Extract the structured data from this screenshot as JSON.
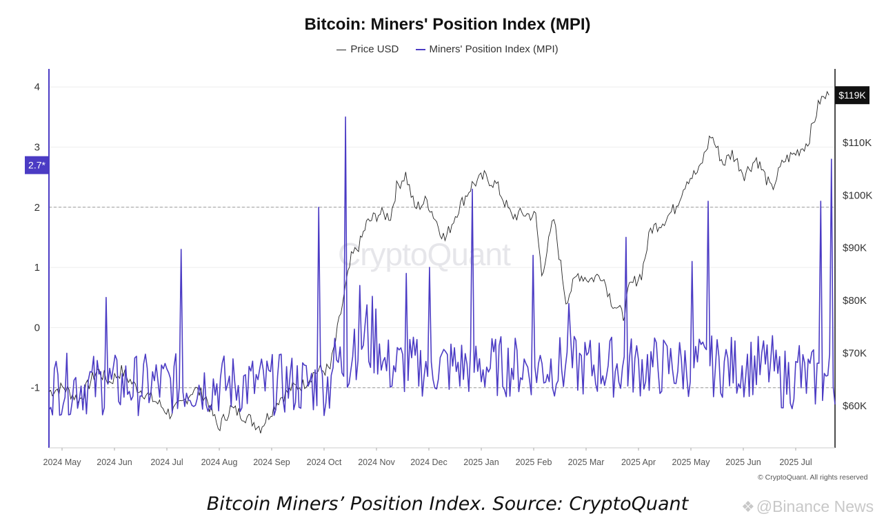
{
  "chart_data": {
    "type": "line",
    "title": "Bitcoin: Miners' Position Index (MPI)",
    "legend_position": "top-center",
    "grid": true,
    "series": [
      {
        "name": "Price USD",
        "color": "#222222",
        "axis": "right",
        "keypoints": [
          [
            0,
            62.7
          ],
          [
            0.5,
            63.5
          ],
          [
            1,
            61.0
          ],
          [
            1.6,
            66.8
          ],
          [
            2,
            64.5
          ],
          [
            2.4,
            66.6
          ],
          [
            2.8,
            64.0
          ],
          [
            3.1,
            62.7
          ],
          [
            3.6,
            60.5
          ],
          [
            4,
            58.5
          ],
          [
            4.4,
            60.3
          ],
          [
            4.8,
            63.3
          ],
          [
            5.2,
            61.5
          ],
          [
            5.6,
            55.7
          ],
          [
            6,
            59.5
          ],
          [
            6.5,
            58.0
          ],
          [
            7,
            55.9
          ],
          [
            7.6,
            61.2
          ],
          [
            8,
            63.3
          ],
          [
            8.4,
            64.0
          ],
          [
            8.8,
            66.4
          ],
          [
            9.3,
            67.0
          ],
          [
            9.6,
            76.0
          ],
          [
            10.0,
            88.0
          ],
          [
            10.3,
            91.0
          ],
          [
            10.5,
            94.5
          ],
          [
            10.9,
            96.5
          ],
          [
            11.3,
            96.0
          ],
          [
            11.5,
            101.5
          ],
          [
            11.8,
            104.0
          ],
          [
            12.1,
            97.5
          ],
          [
            12.5,
            99.0
          ],
          [
            13.1,
            91.5
          ],
          [
            13.5,
            97.0
          ],
          [
            14.0,
            102.0
          ],
          [
            14.4,
            103.5
          ],
          [
            14.8,
            102.0
          ],
          [
            15.3,
            96.0
          ],
          [
            15.7,
            96.5
          ],
          [
            16.1,
            96.0
          ],
          [
            16.3,
            85.0
          ],
          [
            16.7,
            95.5
          ],
          [
            17.1,
            80.0
          ],
          [
            17.5,
            85.0
          ],
          [
            17.9,
            84.0
          ],
          [
            18.3,
            85.0
          ],
          [
            18.6,
            80.0
          ],
          [
            19.0,
            77.0
          ],
          [
            19.2,
            82.5
          ],
          [
            19.6,
            85.0
          ],
          [
            19.9,
            93.5
          ],
          [
            20.3,
            95.0
          ],
          [
            20.7,
            97.5
          ],
          [
            21.1,
            103.0
          ],
          [
            21.5,
            104.5
          ],
          [
            21.9,
            111.5
          ],
          [
            22.3,
            106.0
          ],
          [
            22.6,
            108.0
          ],
          [
            23.0,
            104.0
          ],
          [
            23.4,
            107.0
          ],
          [
            23.9,
            101.0
          ],
          [
            24.3,
            106.5
          ],
          [
            24.7,
            108.0
          ],
          [
            25.1,
            110.0
          ],
          [
            25.5,
            118.0
          ],
          [
            25.8,
            119.0
          ]
        ]
      },
      {
        "name": "Miners' Position Index (MPI)",
        "color": "#4b3bc4",
        "axis": "left",
        "spikes": [
          [
            1.9,
            0.5
          ],
          [
            4.4,
            1.3
          ],
          [
            8.9,
            2.0
          ],
          [
            9.8,
            3.5
          ],
          [
            10.3,
            0.7
          ],
          [
            11.8,
            0.9
          ],
          [
            12.6,
            1.0
          ],
          [
            14.0,
            2.3
          ],
          [
            16.0,
            1.2
          ],
          [
            17.2,
            0.4
          ],
          [
            19.1,
            1.5
          ],
          [
            21.3,
            1.1
          ],
          [
            21.8,
            2.1
          ],
          [
            24.8,
            -0.3
          ],
          [
            25.5,
            2.1
          ],
          [
            25.9,
            2.8
          ]
        ]
      }
    ],
    "x_tick_labels": [
      "2024 May",
      "2024 Jun",
      "2024 Jul",
      "2024 Aug",
      "2024 Sep",
      "2024 Oct",
      "2024 Nov",
      "2024 Dec",
      "2025 Jan",
      "2025 Feb",
      "2025 Mar",
      "2025 Apr",
      "2025 May",
      "2025 Jun",
      "2025 Jul"
    ],
    "y_left": {
      "ticks": [
        "4",
        "3",
        "2",
        "1",
        "0",
        "-1"
      ],
      "ylim": [
        -2.0,
        4.3
      ]
    },
    "y_right": {
      "ticks": [
        "$110K",
        "$100K",
        "$90K",
        "$80K",
        "$70K",
        "$60K"
      ],
      "ylim": [
        52,
        124
      ]
    },
    "reference_lines": [
      2,
      -1
    ],
    "callouts": {
      "left": "2.7*",
      "right": "$119K"
    },
    "callout_values": {
      "left": 2.7,
      "right": 119
    },
    "x_range": [
      0,
      26
    ]
  },
  "watermark_center": "CryptoQuant",
  "copyright": "© CryptoQuant. All rights reserved",
  "caption": "Bitcoin Miners’ Position Index. Source: CryptoQuant",
  "watermark": "@Binance News",
  "colors": {
    "mpi": "#4b3bc4",
    "price": "#222222",
    "grid": "#eeeeee",
    "refline": "#999999",
    "callout_right": "#111111"
  }
}
